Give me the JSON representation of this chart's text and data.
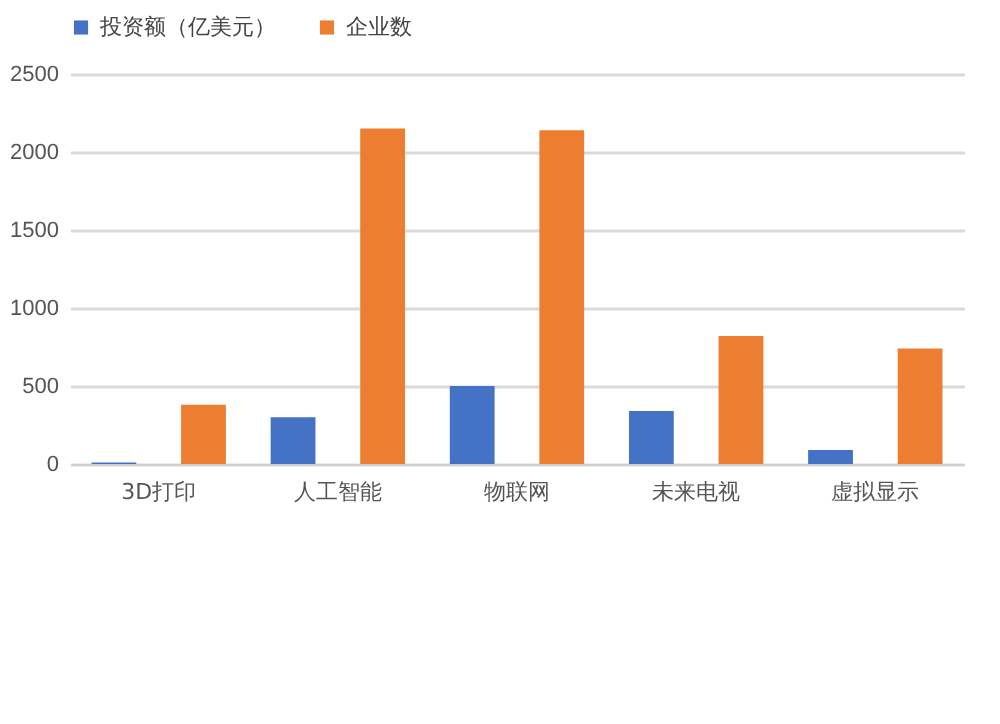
{
  "chart_data": {
    "type": "bar",
    "categories": [
      "3D打印",
      "人工智能",
      "物联网",
      "未来电视",
      "虚拟显示"
    ],
    "series": [
      {
        "name": "投资额（亿美元）",
        "color": "#4472c4",
        "values": [
          10,
          300,
          500,
          340,
          90
        ]
      },
      {
        "name": "企业数",
        "color": "#ed7d31",
        "values": [
          380,
          2150,
          2140,
          820,
          740
        ]
      }
    ],
    "ylim": [
      0,
      2500
    ],
    "yticks": [
      0,
      500,
      1000,
      1500,
      2000,
      2500
    ],
    "grid": "y",
    "legend": "top"
  }
}
